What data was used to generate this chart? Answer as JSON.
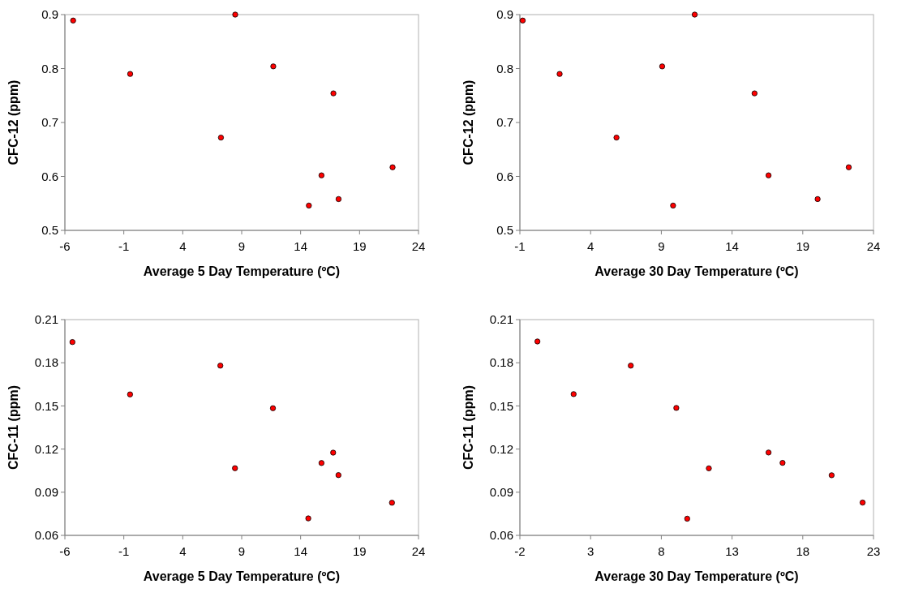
{
  "chart_data": [
    {
      "type": "scatter",
      "xlabel": "Average 5 Day Temperature (ºC)",
      "ylabel": "CFC-12 (ppm)",
      "xlim": [
        -6,
        24
      ],
      "xticks": [
        -6,
        -1,
        4,
        9,
        14,
        19,
        24
      ],
      "ylim": [
        0.5,
        0.9
      ],
      "yticks": [
        0.5,
        0.6,
        0.7,
        0.8,
        0.9
      ],
      "marker": "circle",
      "series": [
        {
          "color": "#ff0000",
          "x": [
            -5.3,
            -0.46,
            8.45,
            7.24,
            11.68,
            16.78,
            15.77,
            14.7,
            17.22,
            21.8
          ],
          "values": [
            0.889,
            0.79,
            0.9,
            0.672,
            0.804,
            0.754,
            0.602,
            0.546,
            0.558,
            0.617
          ]
        }
      ]
    },
    {
      "type": "scatter",
      "xlabel": "Average 30 Day Temperature (ºC)",
      "ylabel": "CFC-12 (ppm)",
      "xlim": [
        -1,
        24
      ],
      "xticks": [
        -1,
        4,
        9,
        14,
        19,
        24
      ],
      "ylim": [
        0.5,
        0.9
      ],
      "yticks": [
        0.5,
        0.6,
        0.7,
        0.8,
        0.9
      ],
      "marker": "circle",
      "series": [
        {
          "color": "#ff0000",
          "x": [
            -0.8,
            1.81,
            11.36,
            5.83,
            9.06,
            15.59,
            16.58,
            9.83,
            20.05,
            22.25
          ],
          "values": [
            0.889,
            0.79,
            0.9,
            0.672,
            0.804,
            0.754,
            0.602,
            0.546,
            0.558,
            0.617
          ]
        }
      ]
    },
    {
      "type": "scatter",
      "xlabel": "Average 5 Day Temperature (ºC)",
      "ylabel": "CFC-11 (ppm)",
      "xlim": [
        -6,
        24
      ],
      "xticks": [
        -6,
        -1,
        4,
        9,
        14,
        19,
        24
      ],
      "ylim": [
        0.06,
        0.21
      ],
      "yticks": [
        0.06,
        0.09,
        0.12,
        0.15,
        0.18,
        0.21
      ],
      "marker": "circle",
      "series": [
        {
          "color": "#ff0000",
          "x": [
            -5.36,
            -0.47,
            7.19,
            11.65,
            8.43,
            14.65,
            15.77,
            16.76,
            17.21,
            21.75
          ],
          "values": [
            0.1944,
            0.158,
            0.178,
            0.1484,
            0.1067,
            0.0718,
            0.1103,
            0.1175,
            0.1019,
            0.0827
          ]
        }
      ]
    },
    {
      "type": "scatter",
      "xlabel": "Average 30 Day Temperature (ºC)",
      "ylabel": "CFC-11 (ppm)",
      "xlim": [
        -2,
        23
      ],
      "xticks": [
        -2,
        3,
        8,
        13,
        18,
        23
      ],
      "ylim": [
        0.06,
        0.21
      ],
      "yticks": [
        0.06,
        0.09,
        0.12,
        0.15,
        0.18,
        0.21
      ],
      "marker": "circle",
      "series": [
        {
          "color": "#ff0000",
          "x": [
            -0.76,
            1.8,
            5.84,
            9.06,
            11.36,
            9.83,
            15.58,
            16.57,
            20.04,
            22.23
          ],
          "values": [
            0.1948,
            0.1582,
            0.178,
            0.1486,
            0.1066,
            0.0716,
            0.1176,
            0.1104,
            0.1018,
            0.0828
          ]
        }
      ]
    }
  ]
}
